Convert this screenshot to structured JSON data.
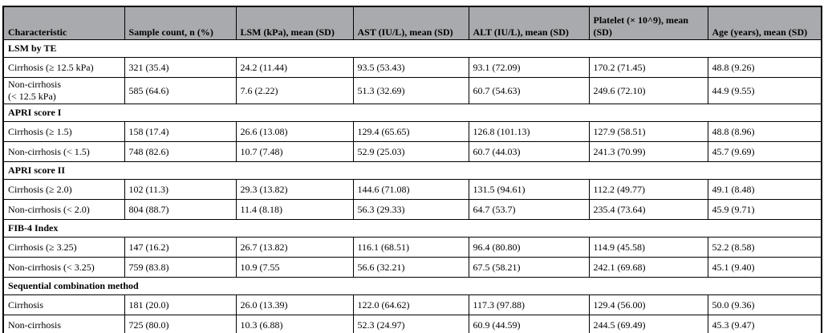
{
  "colors": {
    "header_bg": "#a9aaad",
    "border": "#000000",
    "text": "#000000",
    "background": "#ffffff"
  },
  "table": {
    "columns": [
      "Characteristic",
      "Sample count, n (%)",
      "LSM (kPa), mean (SD)",
      "AST (IU/L), mean (SD)",
      "ALT (IU/L), mean (SD)",
      "Platelet (× 10^9), mean\n(SD)",
      "Age (years), mean (SD)"
    ],
    "sections": [
      {
        "header": "LSM by TE",
        "rows": [
          {
            "characteristic": "Cirrhosis (≥ 12.5 kPa)",
            "values": [
              "321 (35.4)",
              "24.2 (11.44)",
              "93.5 (53.43)",
              "93.1 (72.09)",
              "170.2 (71.45)",
              "48.8 (9.26)"
            ]
          },
          {
            "characteristic": "Non-cirrhosis\n(< 12.5 kPa)",
            "values": [
              "585 (64.6)",
              "7.6 (2.22)",
              "51.3 (32.69)",
              "60.7 (54.63)",
              "249.6 (72.10)",
              "44.9 (9.55)"
            ]
          }
        ]
      },
      {
        "header": "APRI score I",
        "rows": [
          {
            "characteristic": "Cirrhosis (≥ 1.5)",
            "values": [
              "158 (17.4)",
              "26.6 (13.08)",
              "129.4 (65.65)",
              "126.8 (101.13)",
              "127.9 (58.51)",
              "48.8 (8.96)"
            ]
          },
          {
            "characteristic": "Non-cirrhosis (< 1.5)",
            "values": [
              "748 (82.6)",
              "10.7 (7.48)",
              "52.9 (25.03)",
              "60.7 (44.03)",
              "241.3 (70.99)",
              "45.7 (9.69)"
            ]
          }
        ]
      },
      {
        "header": "APRI score II",
        "rows": [
          {
            "characteristic": "Cirrhosis (≥ 2.0)",
            "values": [
              "102 (11.3)",
              "29.3 (13.82)",
              "144.6 (71.08)",
              "131.5 (94.61)",
              "112.2 (49.77)",
              "49.1 (8.48)"
            ]
          },
          {
            "characteristic": "Non-cirrhosis (< 2.0)",
            "values": [
              "804 (88.7)",
              "11.4 (8.18)",
              "56.3 (29.33)",
              "64.7 (53.7)",
              "235.4 (73.64)",
              "45.9 (9.71)"
            ]
          }
        ]
      },
      {
        "header": "FIB-4 Index",
        "rows": [
          {
            "characteristic": "Cirrhosis (≥ 3.25)",
            "values": [
              "147 (16.2)",
              "26.7 (13.82)",
              "116.1 (68.51)",
              "96.4 (80.80)",
              "114.9 (45.58)",
              "52.2 (8.58)"
            ]
          },
          {
            "characteristic": "Non-cirrhosis (< 3.25)",
            "values": [
              "759 (83.8)",
              "10.9 (7.55",
              "56.6 (32.21)",
              "67.5 (58.21)",
              "242.1 (69.68)",
              "45.1 (9.40)"
            ]
          }
        ]
      },
      {
        "header": "Sequential combination method",
        "rows": [
          {
            "characteristic": "Cirrhosis",
            "values": [
              "181 (20.0)",
              "26.0 (13.39)",
              "122.0 (64.62)",
              "117.3 (97.88)",
              "129.4 (56.00)",
              "50.0 (9.36)"
            ]
          },
          {
            "characteristic": "Non-cirrhosis",
            "values": [
              "725 (80.0)",
              "10.3 (6.88)",
              "52.3 (24.97)",
              "60.9 (44.59)",
              "244.5 (69.49)",
              "45.3 (9.47)"
            ]
          }
        ]
      }
    ]
  }
}
